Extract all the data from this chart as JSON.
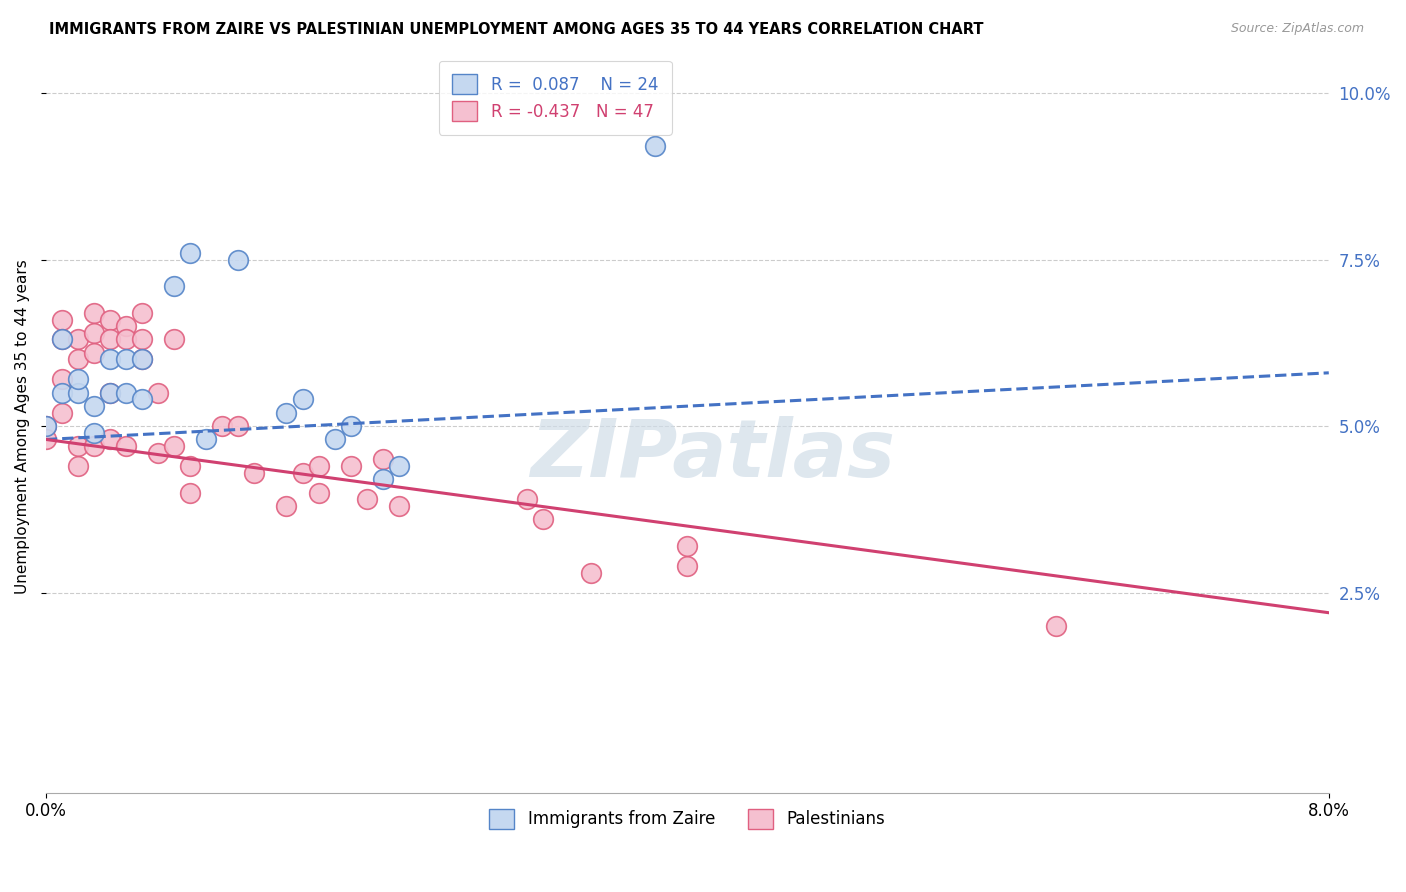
{
  "title": "IMMIGRANTS FROM ZAIRE VS PALESTINIAN UNEMPLOYMENT AMONG AGES 35 TO 44 YEARS CORRELATION CHART",
  "source": "Source: ZipAtlas.com",
  "ylabel": "Unemployment Among Ages 35 to 44 years",
  "xlim": [
    0.0,
    0.08
  ],
  "ylim": [
    -0.005,
    0.105
  ],
  "yticks": [
    0.025,
    0.05,
    0.075,
    0.1
  ],
  "ytick_labels": [
    "2.5%",
    "5.0%",
    "7.5%",
    "10.0%"
  ],
  "blue_R": 0.087,
  "blue_N": 24,
  "pink_R": -0.437,
  "pink_N": 47,
  "blue_color": "#c5d8f0",
  "pink_color": "#f5c0d0",
  "blue_edge_color": "#5585c8",
  "pink_edge_color": "#e06080",
  "blue_line_color": "#4472c4",
  "pink_line_color": "#d04070",
  "watermark": "ZIPatlas",
  "blue_line_x0": 0.0,
  "blue_line_y0": 0.048,
  "blue_line_x1": 0.08,
  "blue_line_y1": 0.058,
  "pink_line_x0": 0.0,
  "pink_line_y0": 0.048,
  "pink_line_x1": 0.08,
  "pink_line_y1": 0.022,
  "blue_points_x": [
    0.0,
    0.001,
    0.001,
    0.002,
    0.002,
    0.003,
    0.003,
    0.004,
    0.004,
    0.005,
    0.005,
    0.006,
    0.006,
    0.008,
    0.009,
    0.01,
    0.012,
    0.015,
    0.016,
    0.018,
    0.019,
    0.021,
    0.022,
    0.038
  ],
  "blue_points_y": [
    0.05,
    0.063,
    0.055,
    0.055,
    0.057,
    0.053,
    0.049,
    0.06,
    0.055,
    0.06,
    0.055,
    0.06,
    0.054,
    0.071,
    0.076,
    0.048,
    0.075,
    0.052,
    0.054,
    0.048,
    0.05,
    0.042,
    0.044,
    0.092
  ],
  "pink_points_x": [
    0.0,
    0.0,
    0.001,
    0.001,
    0.001,
    0.001,
    0.002,
    0.002,
    0.002,
    0.002,
    0.003,
    0.003,
    0.003,
    0.003,
    0.004,
    0.004,
    0.004,
    0.004,
    0.005,
    0.005,
    0.005,
    0.006,
    0.006,
    0.006,
    0.007,
    0.007,
    0.008,
    0.008,
    0.009,
    0.009,
    0.011,
    0.012,
    0.013,
    0.015,
    0.016,
    0.017,
    0.017,
    0.019,
    0.02,
    0.021,
    0.022,
    0.03,
    0.031,
    0.034,
    0.04,
    0.04,
    0.063
  ],
  "pink_points_y": [
    0.05,
    0.048,
    0.066,
    0.063,
    0.057,
    0.052,
    0.063,
    0.06,
    0.047,
    0.044,
    0.067,
    0.064,
    0.061,
    0.047,
    0.066,
    0.063,
    0.055,
    0.048,
    0.065,
    0.063,
    0.047,
    0.067,
    0.063,
    0.06,
    0.055,
    0.046,
    0.063,
    0.047,
    0.044,
    0.04,
    0.05,
    0.05,
    0.043,
    0.038,
    0.043,
    0.044,
    0.04,
    0.044,
    0.039,
    0.045,
    0.038,
    0.039,
    0.036,
    0.028,
    0.029,
    0.032,
    0.02
  ]
}
